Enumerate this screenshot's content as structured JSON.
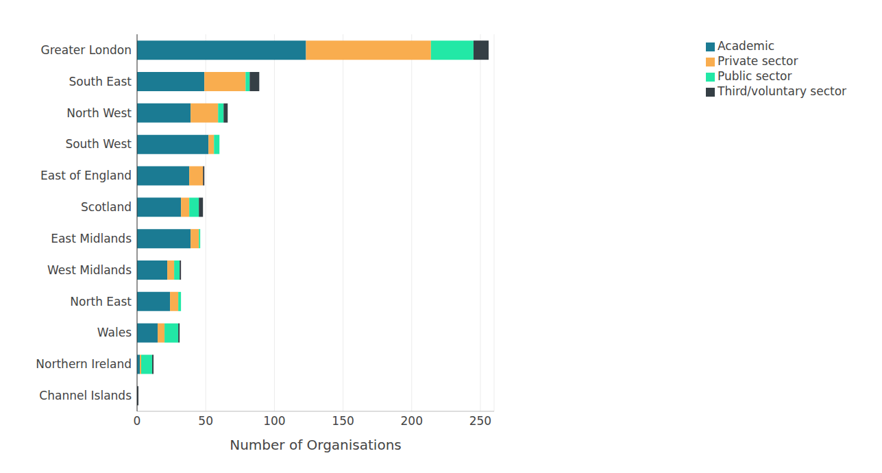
{
  "chart_data": {
    "type": "bar",
    "orientation": "horizontal",
    "stacked": true,
    "grid": true,
    "legend": "top-right",
    "x_label": "Number of Organisations",
    "categories": [
      "Greater London",
      "South East",
      "North West",
      "South West",
      "East of England",
      "Scotland",
      "East Midlands",
      "West Midlands",
      "North East",
      "Wales",
      "Northern Ireland",
      "Channel Islands"
    ],
    "xlim": [
      0,
      260
    ],
    "xticks": [
      0,
      50,
      100,
      150,
      200,
      250
    ],
    "series": [
      {
        "name": "Academic",
        "color": "#1b7b93",
        "values": [
          123,
          49,
          39,
          52,
          38,
          32,
          39,
          22,
          24,
          15,
          2,
          0
        ]
      },
      {
        "name": "Private sector",
        "color": "#f9ad4f",
        "values": [
          91,
          30,
          20,
          4,
          10,
          6,
          6,
          5,
          6,
          5,
          1,
          0
        ]
      },
      {
        "name": "Public sector",
        "color": "#22e8a6",
        "values": [
          31,
          3,
          4,
          4,
          0,
          7,
          1,
          4,
          2,
          10,
          8,
          0
        ]
      },
      {
        "name": "Third/voluntary sector",
        "color": "#353f45",
        "values": [
          11,
          7,
          3,
          0,
          1,
          3,
          0,
          1,
          0,
          1,
          1,
          1
        ]
      }
    ]
  }
}
